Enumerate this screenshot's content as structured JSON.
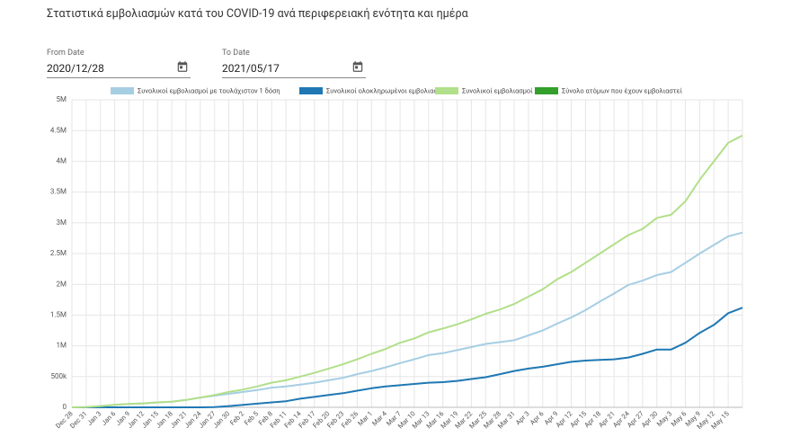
{
  "header": {
    "title": "Στατιστικά εμβολιασμών κατά του COVID-19 ανά περιφερειακή ενότητα και ημέρα"
  },
  "filters": {
    "from_label": "From Date",
    "from_value": "2020/12/28",
    "to_label": "To Date",
    "to_value": "2021/05/17"
  },
  "chart_data": {
    "type": "line",
    "categories": [
      "Dec 28",
      "Dec 31",
      "Jan 3",
      "Jan 6",
      "Jan 9",
      "Jan 12",
      "Jan 15",
      "Jan 18",
      "Jan 21",
      "Jan 24",
      "Jan 27",
      "Jan 30",
      "Feb 2",
      "Feb 5",
      "Feb 8",
      "Feb 11",
      "Feb 14",
      "Feb 17",
      "Feb 20",
      "Feb 23",
      "Feb 26",
      "Mar 1",
      "Mar 4",
      "Mar 7",
      "Mar 10",
      "Mar 13",
      "Mar 16",
      "Mar 19",
      "Mar 22",
      "Mar 25",
      "Mar 28",
      "Mar 31",
      "Apr 3",
      "Apr 6",
      "Apr 9",
      "Apr 12",
      "Apr 15",
      "Apr 18",
      "Apr 21",
      "Apr 24",
      "Apr 27",
      "Apr 30",
      "May 3",
      "May 6",
      "May 9",
      "May 12",
      "May 15",
      null
    ],
    "series": [
      {
        "name": "Συνολικοί εμβολιασμοί με τουλάχιστον 1 δόση",
        "color": "#a6cee3",
        "values": [
          0,
          5000,
          20000,
          40000,
          55000,
          65000,
          80000,
          90000,
          120000,
          160000,
          190000,
          220000,
          250000,
          280000,
          320000,
          340000,
          370000,
          400000,
          440000,
          480000,
          540000,
          590000,
          650000,
          720000,
          780000,
          850000,
          880000,
          930000,
          980000,
          1030000,
          1060000,
          1090000,
          1170000,
          1250000,
          1360000,
          1460000,
          1580000,
          1720000,
          1850000,
          1990000,
          2060000,
          2150000,
          2200000,
          2350000,
          2500000,
          2640000,
          2780000,
          2840000
        ]
      },
      {
        "name": "Συνολικοί ολοκληρωμένοι εμβολιασμοί",
        "color": "#1f78b4",
        "values": [
          0,
          0,
          0,
          0,
          0,
          0,
          0,
          0,
          0,
          0,
          5000,
          20000,
          40000,
          60000,
          80000,
          100000,
          140000,
          170000,
          200000,
          230000,
          270000,
          310000,
          340000,
          360000,
          380000,
          400000,
          410000,
          430000,
          460000,
          490000,
          540000,
          590000,
          630000,
          660000,
          700000,
          740000,
          760000,
          770000,
          780000,
          810000,
          870000,
          940000,
          940000,
          1050000,
          1210000,
          1340000,
          1530000,
          1620000
        ]
      },
      {
        "name": "Συνολικοί εμβολιασμοί",
        "color": "#b2df8a",
        "values": [
          0,
          5000,
          20000,
          40000,
          55000,
          65000,
          80000,
          90000,
          120000,
          160000,
          200000,
          250000,
          290000,
          340000,
          400000,
          440000,
          500000,
          560000,
          630000,
          700000,
          780000,
          870000,
          950000,
          1050000,
          1120000,
          1220000,
          1280000,
          1350000,
          1430000,
          1520000,
          1590000,
          1680000,
          1800000,
          1920000,
          2080000,
          2200000,
          2350000,
          2500000,
          2650000,
          2800000,
          2900000,
          3080000,
          3130000,
          3350000,
          3700000,
          4000000,
          4300000,
          4420000
        ]
      },
      {
        "name": "Σύνολο ατόμων που έχουν εμβολιαστεί",
        "color": "#33a02c",
        "values": [
          null,
          null,
          null,
          null,
          null,
          null,
          null,
          null,
          null,
          null,
          null,
          null,
          null,
          null,
          null,
          null,
          null,
          null,
          null,
          null,
          null,
          null,
          null,
          null,
          null,
          null,
          null,
          null,
          null,
          null,
          null,
          null,
          null,
          null,
          null,
          null,
          null,
          null,
          null,
          null,
          null,
          null,
          null,
          null,
          null,
          null,
          null,
          null
        ]
      }
    ],
    "ylim": [
      0,
      5000000
    ],
    "yticks": [
      0,
      {
        "value": 500000,
        "label": "500k"
      },
      {
        "value": 1000000,
        "label": "1M"
      },
      {
        "value": 1500000,
        "label": "1.5M"
      },
      {
        "value": 2000000,
        "label": "2M"
      },
      {
        "value": 2500000,
        "label": "2.5M"
      },
      {
        "value": 3000000,
        "label": "3M"
      },
      {
        "value": 3500000,
        "label": "3.5M"
      },
      {
        "value": 4000000,
        "label": "4M"
      },
      {
        "value": 4500000,
        "label": "4.5M"
      },
      {
        "value": 5000000,
        "label": "5M"
      }
    ],
    "grid": true
  }
}
